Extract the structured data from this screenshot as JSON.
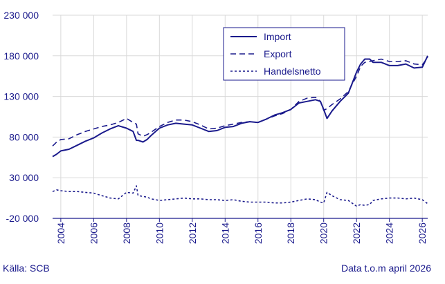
{
  "colors": {
    "line": "#1a1a8c",
    "grid": "#d9d9d9",
    "text": "#1a1a8c"
  },
  "footer": {
    "source": "Källa: SCB",
    "note": "Data t.o.m april 2026"
  },
  "chart_data": {
    "type": "line",
    "title": "",
    "xlabel": "",
    "ylabel": "",
    "ylim": [
      -20000,
      230000
    ],
    "xlim": [
      2003.5,
      2026.33
    ],
    "yticks": [
      230000,
      180000,
      130000,
      80000,
      30000,
      -20000
    ],
    "ytick_labels": [
      "230 000",
      "180 000",
      "130 000",
      "80 000",
      "30 000",
      "-20 000"
    ],
    "xticks": [
      2004,
      2006,
      2008,
      2010,
      2012,
      2014,
      2016,
      2018,
      2020,
      2022,
      2024,
      2026
    ],
    "xtick_labels": [
      "2004",
      "2006",
      "2008",
      "2010",
      "2012",
      "2014",
      "2016",
      "2018",
      "2020",
      "2022",
      "2024",
      "2026"
    ],
    "grid": true,
    "legend_position": "top-right",
    "series": [
      {
        "name": "Import",
        "dash": "solid",
        "x": [
          2003.5,
          2003.75,
          2004,
          2004.5,
          2005,
          2005.5,
          2006,
          2006.5,
          2007,
          2007.5,
          2008,
          2008.4,
          2008.6,
          2008.7,
          2009,
          2009.25,
          2009.5,
          2010,
          2010.5,
          2011,
          2011.5,
          2012,
          2012.5,
          2013,
          2013.5,
          2014,
          2014.5,
          2015,
          2015.5,
          2016,
          2016.5,
          2017,
          2017.5,
          2018,
          2018.5,
          2019,
          2019.5,
          2019.8,
          2020,
          2020.2,
          2020.5,
          2021,
          2021.5,
          2022,
          2022.25,
          2022.5,
          2022.8,
          2023,
          2023.5,
          2024,
          2024.5,
          2025,
          2025.5,
          2026,
          2026.33
        ],
        "y": [
          56000,
          59000,
          63000,
          65000,
          70000,
          75000,
          79000,
          85000,
          90000,
          94000,
          91000,
          87000,
          76000,
          76000,
          74000,
          77000,
          82000,
          91000,
          95000,
          97000,
          96000,
          95000,
          91000,
          87000,
          88000,
          92000,
          93000,
          97000,
          99000,
          98000,
          102000,
          107000,
          110000,
          114000,
          122000,
          124000,
          126000,
          124000,
          114000,
          103000,
          112000,
          124000,
          134000,
          160000,
          170000,
          176000,
          176000,
          172000,
          172000,
          168000,
          168000,
          170000,
          165000,
          166000,
          180000
        ]
      },
      {
        "name": "Export",
        "dash": "8,5",
        "x": [
          2003.5,
          2003.75,
          2004,
          2004.5,
          2005,
          2005.5,
          2006,
          2006.5,
          2007,
          2007.5,
          2008,
          2008.4,
          2008.6,
          2008.7,
          2009,
          2009.25,
          2009.5,
          2010,
          2010.5,
          2011,
          2011.5,
          2012,
          2012.5,
          2013,
          2013.5,
          2014,
          2014.5,
          2015,
          2015.5,
          2016,
          2016.5,
          2017,
          2017.5,
          2018,
          2018.5,
          2019,
          2019.5,
          2019.8,
          2020,
          2020.2,
          2020.5,
          2021,
          2021.5,
          2022,
          2022.25,
          2022.5,
          2022.8,
          2023,
          2023.5,
          2024,
          2024.5,
          2025,
          2025.5,
          2026,
          2026.33
        ],
        "y": [
          69000,
          74000,
          77000,
          78000,
          83000,
          87000,
          90000,
          93000,
          95000,
          98000,
          103000,
          98000,
          96000,
          84000,
          81000,
          83000,
          86000,
          93000,
          98000,
          101000,
          101000,
          99000,
          95000,
          90000,
          91000,
          94000,
          96000,
          98000,
          99000,
          98000,
          102000,
          106000,
          109000,
          114000,
          124000,
          128000,
          129000,
          124000,
          113000,
          115000,
          120000,
          127000,
          136000,
          155000,
          167000,
          172000,
          173000,
          174000,
          176000,
          173000,
          173000,
          174000,
          170000,
          169000,
          178000
        ]
      },
      {
        "name": "Handelsnetto",
        "dash": "3,3",
        "x": [
          2003.5,
          2003.75,
          2004,
          2004.5,
          2005,
          2005.5,
          2006,
          2006.5,
          2007,
          2007.5,
          2008,
          2008.4,
          2008.6,
          2008.7,
          2009,
          2009.25,
          2009.5,
          2010,
          2010.5,
          2011,
          2011.5,
          2012,
          2012.5,
          2013,
          2013.5,
          2014,
          2014.5,
          2015,
          2015.5,
          2016,
          2016.5,
          2017,
          2017.5,
          2018,
          2018.5,
          2019,
          2019.5,
          2019.8,
          2020,
          2020.2,
          2020.5,
          2021,
          2021.5,
          2022,
          2022.25,
          2022.5,
          2022.8,
          2023,
          2023.5,
          2024,
          2024.5,
          2025,
          2025.5,
          2026,
          2026.33
        ],
        "y": [
          13000,
          15000,
          14000,
          13000,
          13000,
          12000,
          11000,
          8000,
          5000,
          4000,
          12000,
          11000,
          20000,
          8000,
          7000,
          6000,
          4000,
          2000,
          3000,
          4000,
          5000,
          4000,
          4000,
          3000,
          3000,
          2000,
          3000,
          1000,
          0,
          0,
          0,
          -1000,
          -1000,
          0,
          2000,
          4000,
          3000,
          0,
          -1000,
          12000,
          8000,
          3000,
          2000,
          -5000,
          -3000,
          -4000,
          -3000,
          2000,
          4000,
          5000,
          5000,
          4000,
          5000,
          3000,
          -2000
        ]
      }
    ]
  }
}
